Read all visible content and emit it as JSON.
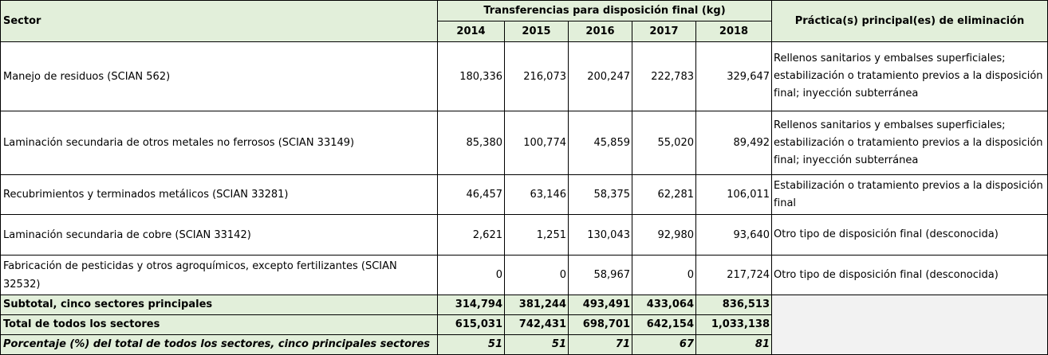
{
  "table": {
    "header": {
      "sector": "Sector",
      "group": "Transferencias para disposición final (kg)",
      "years": [
        "2014",
        "2015",
        "2016",
        "2017",
        "2018"
      ],
      "practice": "Práctica(s) principal(es) de eliminación"
    },
    "rows": [
      {
        "sector": "Manejo de residuos (SCIAN 562)",
        "values": [
          "180,336",
          "216,073",
          "200,247",
          "222,783",
          "329,647"
        ],
        "practice": "Rellenos sanitarios y embalses superficiales; estabilización o tratamiento previos a la disposición final; inyección subterránea"
      },
      {
        "sector": "Laminación secundaria de otros metales no ferrosos (SCIAN 33149)",
        "values": [
          "85,380",
          "100,774",
          "45,859",
          "55,020",
          "89,492"
        ],
        "practice": "Rellenos sanitarios y embalses superficiales; estabilización o tratamiento previos a la disposición final; inyección subterránea"
      },
      {
        "sector": "Recubrimientos y terminados metálicos (SCIAN 33281)",
        "values": [
          "46,457",
          "63,146",
          "58,375",
          "62,281",
          "106,011"
        ],
        "practice": "Estabilización o tratamiento previos a la disposición final"
      },
      {
        "sector": "Laminación secundaria de cobre (SCIAN 33142)",
        "values": [
          "2,621",
          "1,251",
          "130,043",
          "92,980",
          "93,640"
        ],
        "practice": "Otro tipo de disposición final (desconocida)"
      },
      {
        "sector": "Fabricación de pesticidas y otros agroquímicos, excepto fertilizantes (SCIAN 32532)",
        "values": [
          "0",
          "0",
          "58,967",
          "0",
          "217,724"
        ],
        "practice": "Otro tipo de disposición final (desconocida)"
      }
    ],
    "summary": [
      {
        "label": "Subtotal, cinco sectores principales",
        "values": [
          "314,794",
          "381,244",
          "493,491",
          "433,064",
          "836,513"
        ]
      },
      {
        "label": "Total de todos los sectores",
        "values": [
          "615,031",
          "742,431",
          "698,701",
          "642,154",
          "1,033,138"
        ]
      },
      {
        "label": "Porcentaje (%) del total de todos los sectores, cinco principales sectores",
        "values": [
          "51",
          "51",
          "71",
          "67",
          "81"
        ]
      }
    ]
  }
}
